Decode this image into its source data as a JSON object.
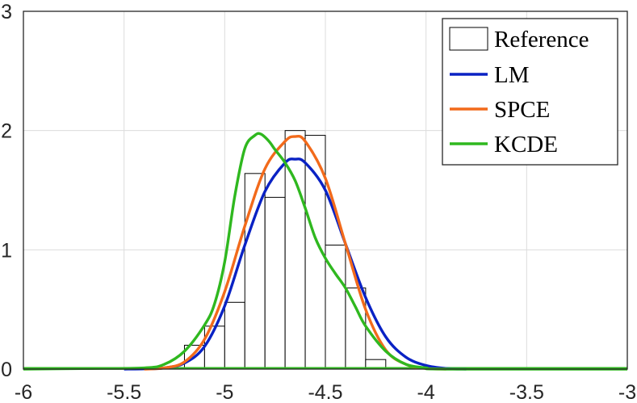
{
  "chart_data": {
    "type": "line",
    "xlim": [
      -6,
      -3
    ],
    "ylim": [
      0,
      3
    ],
    "xticks": [
      "-6",
      "-5.5",
      "-5",
      "-4.5",
      "-4",
      "-3.5",
      "-3"
    ],
    "yticks": [
      "0",
      "1",
      "2",
      "3"
    ],
    "grid": true,
    "legend_position": "top-right",
    "histogram": {
      "name": "Reference",
      "bins": [
        {
          "x0": -5.2,
          "x1": -5.1,
          "y": 0.2
        },
        {
          "x0": -5.1,
          "x1": -5.0,
          "y": 0.36
        },
        {
          "x0": -5.0,
          "x1": -4.9,
          "y": 0.56
        },
        {
          "x0": -4.9,
          "x1": -4.8,
          "y": 1.64
        },
        {
          "x0": -4.8,
          "x1": -4.7,
          "y": 1.44
        },
        {
          "x0": -4.7,
          "x1": -4.6,
          "y": 2.0
        },
        {
          "x0": -4.6,
          "x1": -4.5,
          "y": 1.96
        },
        {
          "x0": -4.5,
          "x1": -4.4,
          "y": 1.04
        },
        {
          "x0": -4.4,
          "x1": -4.3,
          "y": 0.68
        },
        {
          "x0": -4.3,
          "x1": -4.2,
          "y": 0.08
        }
      ]
    },
    "series": [
      {
        "name": "LM",
        "color": "#0a22c4",
        "x": [
          -5.5,
          -5.4,
          -5.3,
          -5.2,
          -5.1,
          -5.0,
          -4.9,
          -4.8,
          -4.7,
          -4.65,
          -4.6,
          -4.5,
          -4.4,
          -4.3,
          -4.2,
          -4.1,
          -4.0,
          -3.9,
          -3.8
        ],
        "y": [
          0.0,
          0.002,
          0.01,
          0.05,
          0.19,
          0.53,
          1.04,
          1.49,
          1.73,
          1.76,
          1.73,
          1.5,
          1.05,
          0.6,
          0.27,
          0.1,
          0.03,
          0.005,
          0.0
        ]
      },
      {
        "name": "SPCE",
        "color": "#f26a1b",
        "x": [
          -5.4,
          -5.3,
          -5.2,
          -5.1,
          -5.0,
          -4.9,
          -4.8,
          -4.7,
          -4.65,
          -4.6,
          -4.5,
          -4.4,
          -4.3,
          -4.2,
          -4.1,
          -4.0,
          -3.9
        ],
        "y": [
          0.0,
          0.01,
          0.06,
          0.25,
          0.65,
          1.2,
          1.68,
          1.91,
          1.95,
          1.91,
          1.6,
          1.05,
          0.5,
          0.16,
          0.04,
          0.005,
          0.0
        ]
      },
      {
        "name": "KCDE",
        "color": "#2fb81f",
        "x": [
          -6.0,
          -5.7,
          -5.4,
          -5.3,
          -5.2,
          -5.1,
          -5.05,
          -5.0,
          -4.95,
          -4.9,
          -4.85,
          -4.82,
          -4.78,
          -4.75,
          -4.7,
          -4.65,
          -4.6,
          -4.55,
          -4.5,
          -4.45,
          -4.4,
          -4.35,
          -4.3,
          -4.2,
          -4.1,
          -4.0,
          -3.9,
          -3.0
        ],
        "y": [
          0.0,
          0.005,
          0.01,
          0.04,
          0.15,
          0.37,
          0.55,
          0.9,
          1.45,
          1.85,
          1.96,
          1.97,
          1.91,
          1.84,
          1.73,
          1.58,
          1.35,
          1.1,
          0.93,
          0.8,
          0.68,
          0.52,
          0.36,
          0.15,
          0.04,
          0.01,
          0.0,
          0.0
        ]
      }
    ]
  }
}
